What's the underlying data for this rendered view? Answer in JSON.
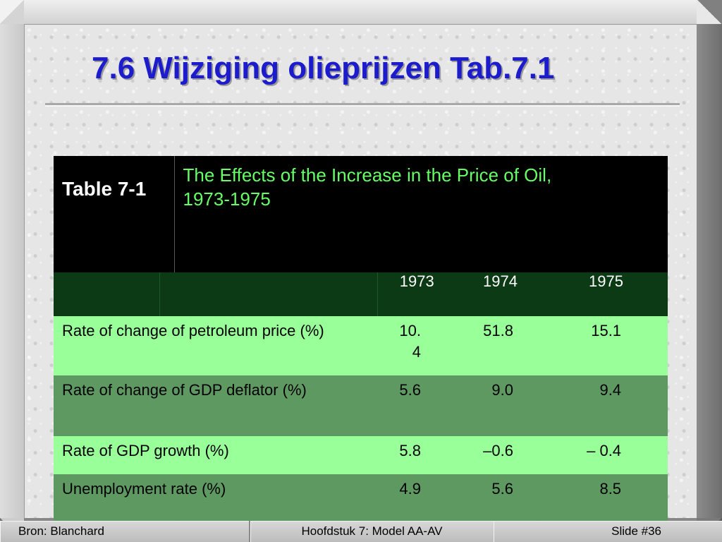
{
  "slide": {
    "title": "7.6 Wijziging olieprijzen Tab.7.1"
  },
  "table": {
    "number": "Table 7-1",
    "caption_line1": "The Effects of the Increase in the Price of Oil,",
    "caption_line2": "1973-1975",
    "years": [
      "1973",
      "1974",
      "1975"
    ],
    "rows": [
      {
        "label": "Rate of change of petroleum price (%)",
        "values": [
          "10.\n4",
          "51.8",
          "15.1"
        ]
      },
      {
        "label": "Rate of change of GDP deflator (%)",
        "values": [
          "5.6",
          "9.0",
          "9.4"
        ]
      },
      {
        "label": "Rate of GDP growth (%)",
        "values": [
          "5.8",
          "–0.6",
          "– 0.4"
        ]
      },
      {
        "label": "Unemployment rate (%)",
        "values": [
          "4.9",
          "5.6",
          "8.5"
        ]
      }
    ]
  },
  "footer": {
    "source": "Bron: Blanchard",
    "chapter": "Hoofdstuk 7: Model AA-AV",
    "slide_number": "Slide #36"
  },
  "colors": {
    "title": "#1c1ccc",
    "table_header_bg": "#000000",
    "caption_text": "#66ff66",
    "year_row_bg": "#0b3a14",
    "light_row_bg": "#99ff99",
    "dark_row_bg": "#5f9962"
  }
}
